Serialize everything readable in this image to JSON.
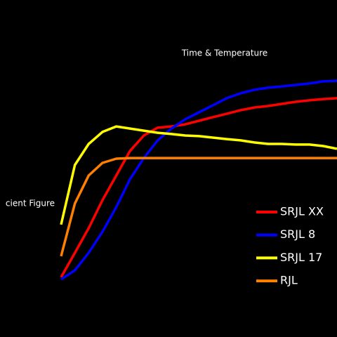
{
  "chart_data": {
    "type": "line",
    "title": "Time & Temperature",
    "ylabel": "cient Figure",
    "x": [
      0,
      5,
      10,
      15,
      20,
      25,
      30,
      35,
      40,
      45,
      50,
      55,
      60,
      65,
      70,
      75,
      80,
      85,
      90,
      95,
      100
    ],
    "xlim": [
      0,
      100
    ],
    "ylim": [
      0,
      100
    ],
    "series": [
      {
        "name": "SRJL XX",
        "color": "#ff0000",
        "values": [
          1.7,
          13.3,
          25,
          38.3,
          50,
          61.7,
          69,
          72.7,
          73.3,
          74.3,
          76,
          77.7,
          79.3,
          81,
          82.3,
          83,
          84,
          85,
          85.7,
          86.3,
          86.7
        ]
      },
      {
        "name": "SRJL 8",
        "color": "#0000ff",
        "values": [
          0.7,
          5,
          13.3,
          23.3,
          35,
          48.3,
          58.3,
          66.7,
          72.3,
          76.7,
          80,
          83.3,
          86.7,
          89,
          90.7,
          91.7,
          92.3,
          93,
          93.7,
          94.7,
          95
        ]
      },
      {
        "name": "SRJL 17",
        "color": "#ffff00",
        "values": [
          26.7,
          55,
          65,
          70.7,
          73.3,
          72.3,
          71.3,
          70.3,
          69.7,
          69,
          68.7,
          68,
          67.3,
          66.7,
          65.7,
          65,
          65,
          64.7,
          64.7,
          64,
          62.7
        ]
      },
      {
        "name": "RJL",
        "color": "#ff8000",
        "values": [
          11.7,
          36.7,
          50,
          56,
          58,
          58.3,
          58.3,
          58.3,
          58.3,
          58.3,
          58.3,
          58.3,
          58.3,
          58.3,
          58.3,
          58.3,
          58.3,
          58.3,
          58.3,
          58.3,
          58.3
        ]
      }
    ]
  }
}
